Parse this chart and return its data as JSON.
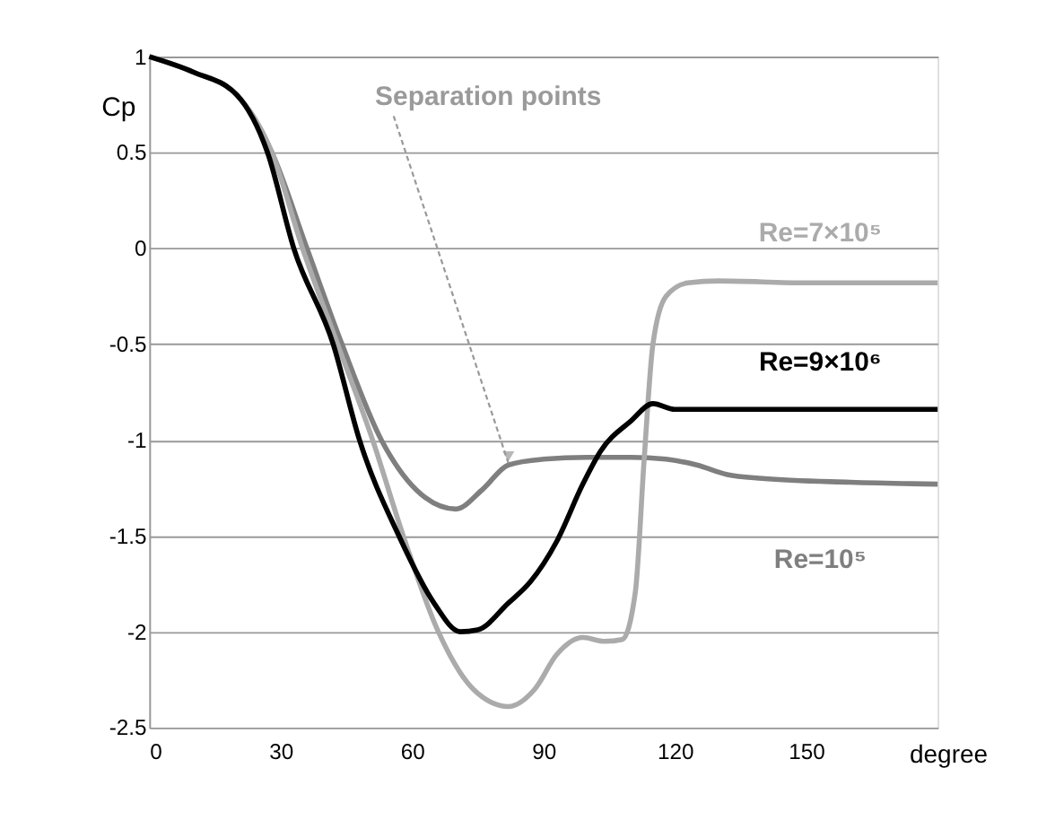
{
  "chart_data": {
    "type": "line",
    "xlabel": "degree",
    "ylabel": "Cp",
    "xlim": [
      0,
      180
    ],
    "xticks": [
      0,
      30,
      60,
      90,
      120,
      150
    ],
    "ylim": [
      -2.5,
      1
    ],
    "yticks": [
      -2.5,
      -2,
      -1.5,
      -1,
      -0.5,
      0,
      0.5,
      1
    ],
    "grid": "y",
    "line_style": "solid",
    "marker": "none",
    "annotations": [
      {
        "text": "Separation points",
        "x": 82,
        "y": -1.12
      }
    ],
    "series": [
      {
        "name": "Re=10⁵",
        "color": "#7f7f7f",
        "x": [
          0,
          10,
          20,
          28,
          36,
          44,
          53,
          63,
          70,
          76,
          82,
          90,
          100,
          110,
          118,
          125,
          132,
          140,
          160,
          180
        ],
        "values": [
          1,
          0.92,
          0.8,
          0.5,
          0,
          -0.5,
          -1,
          -1.3,
          -1.36,
          -1.26,
          -1.13,
          -1.1,
          -1.09,
          -1.09,
          -1.1,
          -1.13,
          -1.18,
          -1.2,
          -1.22,
          -1.23
        ]
      },
      {
        "name": "Re=7×10⁵",
        "color": "#ababab",
        "x": [
          0,
          10,
          20,
          28,
          35,
          43,
          51,
          58,
          66,
          74,
          82,
          88,
          93,
          99,
          104,
          108,
          111,
          113,
          115,
          118,
          123,
          130,
          150,
          180
        ],
        "values": [
          1,
          0.92,
          0.8,
          0.5,
          0,
          -0.5,
          -1,
          -1.5,
          -2,
          -2.3,
          -2.39,
          -2.3,
          -2.12,
          -2.03,
          -2.05,
          -2.04,
          -1.79,
          -1.1,
          -0.5,
          -0.25,
          -0.18,
          -0.17,
          -0.18,
          -0.18
        ]
      },
      {
        "name": "Re=9×10⁶",
        "color": "#000000",
        "x": [
          0,
          10,
          20,
          27,
          33,
          42,
          48,
          57,
          65,
          71,
          75,
          82,
          87,
          93,
          99,
          103,
          110,
          115,
          120,
          140,
          180
        ],
        "values": [
          1,
          0.92,
          0.8,
          0.5,
          0,
          -0.5,
          -1,
          -1.5,
          -1.85,
          -2,
          -1.99,
          -1.85,
          -1.74,
          -1.53,
          -1.23,
          -1.06,
          -0.9,
          -0.81,
          -0.84,
          -0.84,
          -0.84
        ]
      }
    ]
  }
}
